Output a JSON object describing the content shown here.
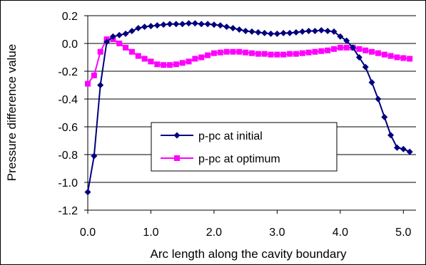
{
  "chart_data": {
    "type": "line",
    "xlabel": "Arc length along the cavity boundary",
    "ylabel": "Pressure difference value",
    "xlim": [
      0.0,
      5.2
    ],
    "ylim": [
      -1.2,
      0.2
    ],
    "xticks": [
      0.0,
      1.0,
      2.0,
      3.0,
      4.0,
      5.0
    ],
    "xtick_labels": [
      "0.0",
      "1.0",
      "2.0",
      "3.0",
      "4.0",
      "5.0"
    ],
    "yticks": [
      0.2,
      0.0,
      -0.2,
      -0.4,
      -0.6,
      -0.8,
      -1.0,
      -1.2
    ],
    "ytick_labels": [
      "0.2",
      "0.0",
      "-0.2",
      "-0.4",
      "-0.6",
      "-0.8",
      "-1.0",
      "-1.2"
    ],
    "grid": "horizontal",
    "legend_position": "center",
    "series": [
      {
        "name": "p-pc at initial",
        "color": "#00007f",
        "marker": "diamond",
        "x": [
          0.0,
          0.1,
          0.2,
          0.3,
          0.4,
          0.5,
          0.6,
          0.7,
          0.8,
          0.9,
          1.0,
          1.1,
          1.2,
          1.3,
          1.4,
          1.5,
          1.6,
          1.7,
          1.8,
          1.9,
          2.0,
          2.1,
          2.2,
          2.3,
          2.4,
          2.5,
          2.6,
          2.7,
          2.8,
          2.9,
          3.0,
          3.1,
          3.2,
          3.3,
          3.4,
          3.5,
          3.6,
          3.7,
          3.8,
          3.9,
          4.0,
          4.1,
          4.2,
          4.3,
          4.4,
          4.5,
          4.6,
          4.7,
          4.8,
          4.9,
          5.0,
          5.1
        ],
        "y": [
          -1.07,
          -0.81,
          -0.3,
          0.01,
          0.05,
          0.06,
          0.07,
          0.09,
          0.11,
          0.12,
          0.125,
          0.13,
          0.135,
          0.14,
          0.14,
          0.14,
          0.145,
          0.145,
          0.14,
          0.14,
          0.135,
          0.13,
          0.12,
          0.11,
          0.1,
          0.09,
          0.085,
          0.08,
          0.075,
          0.07,
          0.07,
          0.075,
          0.075,
          0.08,
          0.085,
          0.09,
          0.09,
          0.095,
          0.09,
          0.085,
          0.05,
          0.02,
          -0.03,
          -0.1,
          -0.17,
          -0.28,
          -0.4,
          -0.53,
          -0.66,
          -0.75,
          -0.76,
          -0.78
        ]
      },
      {
        "name": "p-pc at optimum",
        "color": "#ff00ff",
        "marker": "square",
        "x": [
          0.0,
          0.1,
          0.2,
          0.3,
          0.4,
          0.5,
          0.6,
          0.7,
          0.8,
          0.9,
          1.0,
          1.1,
          1.2,
          1.3,
          1.4,
          1.5,
          1.6,
          1.7,
          1.8,
          1.9,
          2.0,
          2.1,
          2.2,
          2.3,
          2.4,
          2.5,
          2.6,
          2.7,
          2.8,
          2.9,
          3.0,
          3.1,
          3.2,
          3.3,
          3.4,
          3.5,
          3.6,
          3.7,
          3.8,
          3.9,
          4.0,
          4.1,
          4.2,
          4.3,
          4.4,
          4.5,
          4.6,
          4.7,
          4.8,
          4.9,
          5.0,
          5.1
        ],
        "y": [
          -0.29,
          -0.23,
          -0.06,
          0.03,
          0.03,
          0.0,
          -0.03,
          -0.06,
          -0.09,
          -0.11,
          -0.13,
          -0.15,
          -0.155,
          -0.155,
          -0.15,
          -0.14,
          -0.13,
          -0.11,
          -0.1,
          -0.085,
          -0.07,
          -0.065,
          -0.06,
          -0.06,
          -0.06,
          -0.065,
          -0.07,
          -0.075,
          -0.075,
          -0.08,
          -0.08,
          -0.08,
          -0.075,
          -0.075,
          -0.07,
          -0.065,
          -0.06,
          -0.055,
          -0.05,
          -0.04,
          -0.03,
          -0.03,
          -0.03,
          -0.04,
          -0.05,
          -0.06,
          -0.07,
          -0.08,
          -0.09,
          -0.1,
          -0.105,
          -0.11
        ]
      }
    ]
  }
}
